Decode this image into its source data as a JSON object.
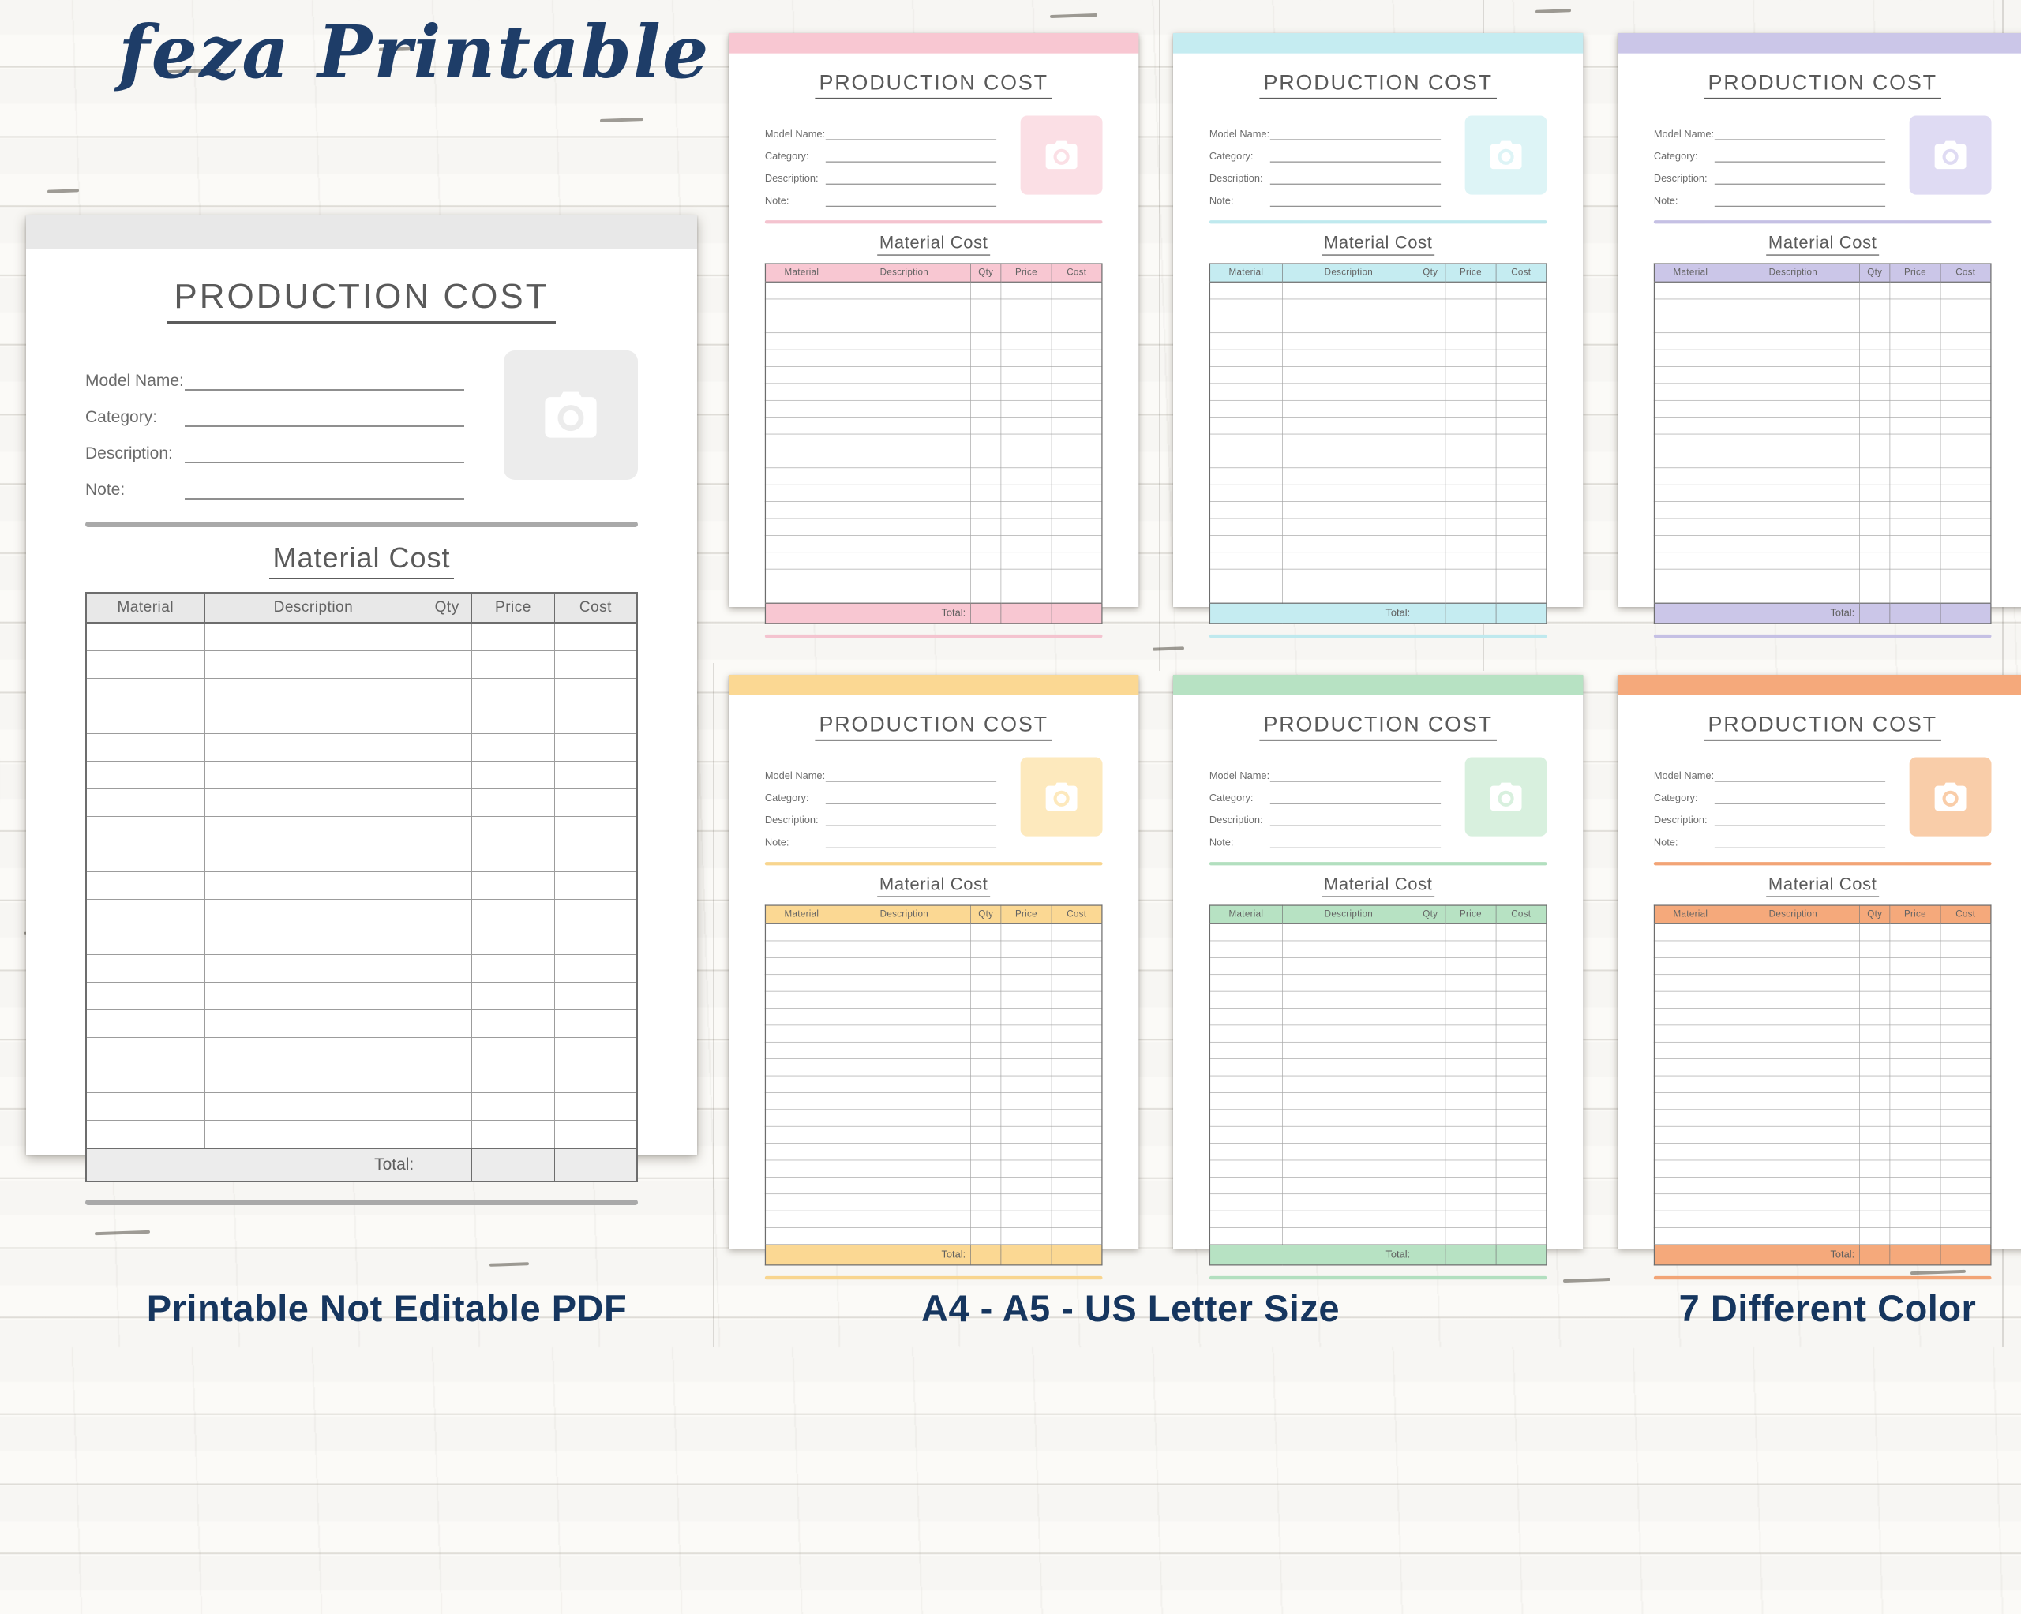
{
  "logo": {
    "text": "feza Printable",
    "color": "#1e3d68"
  },
  "footer": {
    "left": "Printable Not Editable PDF",
    "middle": "A4 - A5 - US Letter Size",
    "right": "7 Different Color",
    "color": "#16365f"
  },
  "template": {
    "title": "PRODUCTION COST",
    "fields": [
      {
        "label": "Model Name:"
      },
      {
        "label": "Category:"
      },
      {
        "label": "Description:"
      },
      {
        "label": "Note:"
      }
    ],
    "photo_icon": "camera-icon",
    "section_title": "Material Cost",
    "table": {
      "headers": [
        "Material",
        "Description",
        "Qty",
        "Price",
        "Cost"
      ],
      "body_row_count": 19,
      "total_label": "Total:"
    }
  },
  "pages": {
    "main": {
      "color_name": "gray",
      "accent": "#e8e8e8",
      "accent_light": "#ececec",
      "divider": "#a9a9a9",
      "total_bg": "#ececec"
    },
    "variants": [
      {
        "color_name": "pink",
        "accent": "#f8c7d2",
        "accent_light": "#fbdfe5",
        "divider": "#f4c3cf",
        "total_bg": "#f8c7d2"
      },
      {
        "color_name": "cyan",
        "accent": "#c5ecf1",
        "accent_light": "#ddf4f6",
        "divider": "#bfe9ee",
        "total_bg": "#c5ecf1"
      },
      {
        "color_name": "purple",
        "accent": "#cbc6e8",
        "accent_light": "#dfdbf3",
        "divider": "#c5c0e4",
        "total_bg": "#cbc6e8"
      },
      {
        "color_name": "yellow",
        "accent": "#fbd893",
        "accent_light": "#fde9bd",
        "divider": "#f8d58e",
        "total_bg": "#fbd893"
      },
      {
        "color_name": "green",
        "accent": "#b7e2c3",
        "accent_light": "#d8f0de",
        "divider": "#b2dfbf",
        "total_bg": "#b7e2c3"
      },
      {
        "color_name": "orange",
        "accent": "#f5a97b",
        "accent_light": "#f9cda9",
        "divider": "#f2a476",
        "total_bg": "#f5a97b"
      }
    ]
  }
}
